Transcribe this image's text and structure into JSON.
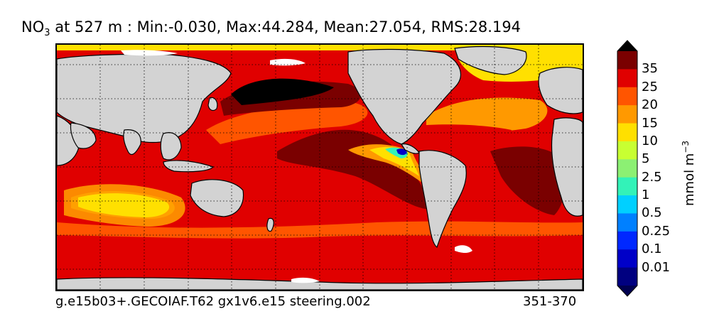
{
  "title": {
    "var_main": "NO",
    "var_sub": "3",
    "rest": " at 527 m : Min:-0.030, Max:44.284, Mean:27.054, RMS:28.194"
  },
  "footer": {
    "case": "g.e15b03+.GECOIAF.T62 gx1v6.e15 steering.002",
    "years": "351-370"
  },
  "colorbar": {
    "unit_main": "mmol m",
    "unit_sup": "−3",
    "ticks": [
      "35",
      "25",
      "20",
      "15",
      "10",
      "5",
      "2.5",
      "1",
      "0.5",
      "0.25",
      "0.1",
      "0.01"
    ],
    "colors": [
      "#000080",
      "#0000c8",
      "#0028ff",
      "#0080ff",
      "#00d0ff",
      "#33f2b8",
      "#8cf073",
      "#c8ff32",
      "#ffe000",
      "#ff9900",
      "#ff5500",
      "#e00000",
      "#7a0000"
    ],
    "under_color": "#000050",
    "over_color": "#000000"
  },
  "map": {
    "land_color": "#d3d3d3",
    "missing_color": "#ffffff"
  }
}
